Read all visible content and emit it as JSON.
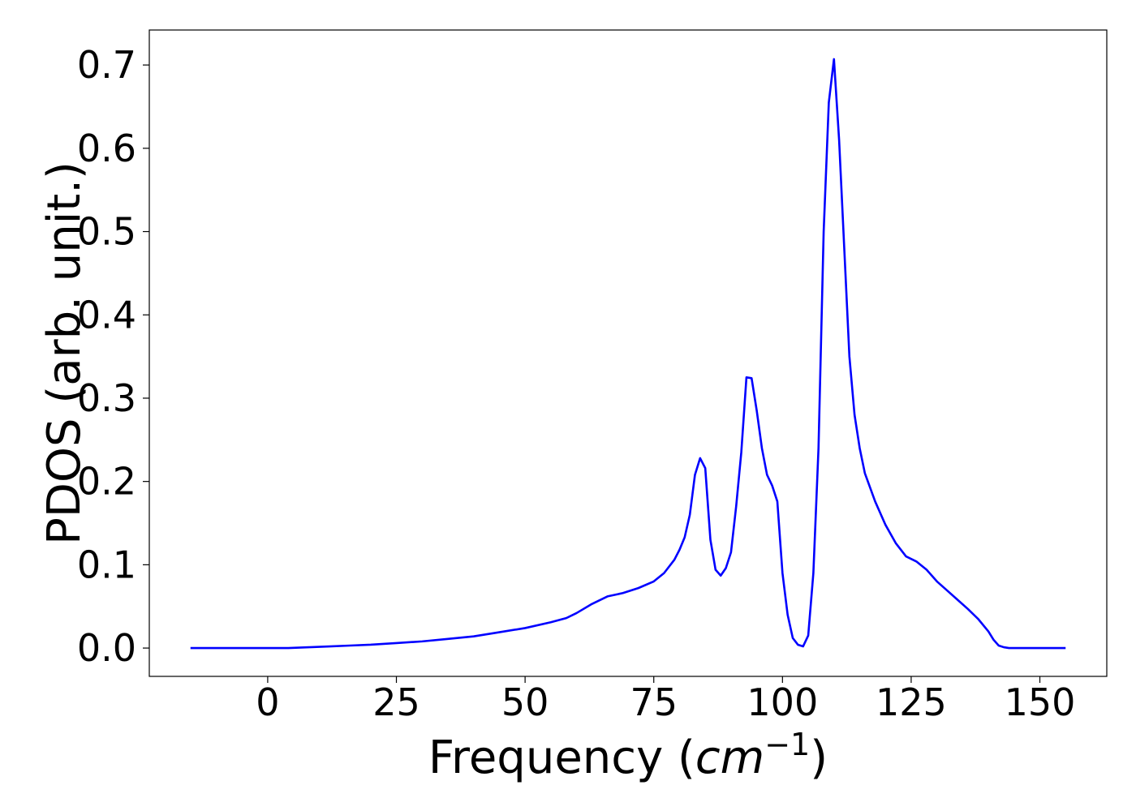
{
  "chart_data": {
    "type": "line",
    "title": "",
    "xlabel": "Frequency (cm⁻¹)",
    "xlabel_parts": {
      "prefix": "Frequency (",
      "italic": "cm",
      "superscript": "−1",
      "suffix": ")"
    },
    "ylabel": "PDOS (arb. unit.)",
    "xlim": [
      -23,
      163
    ],
    "ylim": [
      -0.034,
      0.742
    ],
    "xticks": [
      0,
      25,
      50,
      75,
      100,
      125,
      150
    ],
    "xtick_labels": [
      "0",
      "25",
      "50",
      "75",
      "100",
      "125",
      "150"
    ],
    "yticks": [
      0.0,
      0.1,
      0.2,
      0.3,
      0.4,
      0.5,
      0.6,
      0.7
    ],
    "ytick_labels": [
      "0.0",
      "0.1",
      "0.2",
      "0.3",
      "0.4",
      "0.5",
      "0.6",
      "0.7"
    ],
    "grid": false,
    "legend": "none",
    "series": [
      {
        "color": "#0000ff",
        "x": [
          -15,
          0,
          4,
          8,
          12,
          16,
          20,
          25,
          30,
          35,
          40,
          45,
          50,
          55,
          58,
          60,
          63,
          66,
          69,
          72,
          75,
          77,
          79,
          80,
          81,
          82,
          83,
          84,
          85,
          86,
          87,
          88,
          89,
          90,
          91,
          92,
          93,
          94,
          95,
          96,
          97,
          98,
          99,
          100,
          101,
          102,
          103,
          104,
          105,
          106,
          107,
          108,
          109,
          110,
          111,
          112,
          113,
          114,
          115,
          116,
          118,
          120,
          122,
          124,
          126,
          128,
          130,
          132,
          134,
          136,
          138,
          140,
          141,
          142,
          143,
          144,
          146,
          150,
          155
        ],
        "y": [
          0.0,
          0.0,
          0.0,
          0.001,
          0.002,
          0.003,
          0.004,
          0.006,
          0.008,
          0.011,
          0.014,
          0.019,
          0.024,
          0.031,
          0.036,
          0.042,
          0.053,
          0.062,
          0.066,
          0.072,
          0.08,
          0.09,
          0.106,
          0.118,
          0.133,
          0.16,
          0.208,
          0.228,
          0.216,
          0.13,
          0.094,
          0.087,
          0.096,
          0.115,
          0.17,
          0.235,
          0.325,
          0.324,
          0.285,
          0.24,
          0.208,
          0.195,
          0.176,
          0.09,
          0.04,
          0.012,
          0.004,
          0.002,
          0.015,
          0.09,
          0.24,
          0.5,
          0.655,
          0.707,
          0.61,
          0.48,
          0.35,
          0.28,
          0.24,
          0.21,
          0.176,
          0.148,
          0.126,
          0.11,
          0.104,
          0.094,
          0.08,
          0.069,
          0.058,
          0.047,
          0.035,
          0.02,
          0.01,
          0.003,
          0.001,
          0.0,
          0.0,
          0.0,
          0.0
        ]
      }
    ]
  }
}
